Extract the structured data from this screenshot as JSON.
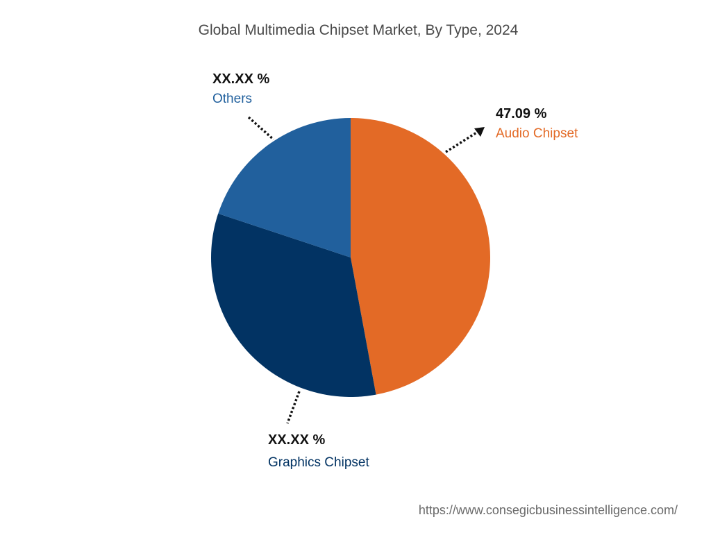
{
  "chart_data": {
    "type": "pie",
    "title": "Global Multimedia Chipset Market, By Type, 2024",
    "slices": [
      {
        "name": "Audio Chipset",
        "value": 47.09,
        "value_label": "47.09 %",
        "color": "#e36a26"
      },
      {
        "name": "Graphics Chipset",
        "value": 33.0,
        "value_label": "XX.XX %",
        "color": "#023363"
      },
      {
        "name": "Others",
        "value": 19.91,
        "value_label": "XX.XX %",
        "color": "#21609d"
      }
    ],
    "start_angle_deg": 0,
    "direction": "clockwise"
  },
  "source_url": "https://www.consegicbusinessintelligence.com/"
}
